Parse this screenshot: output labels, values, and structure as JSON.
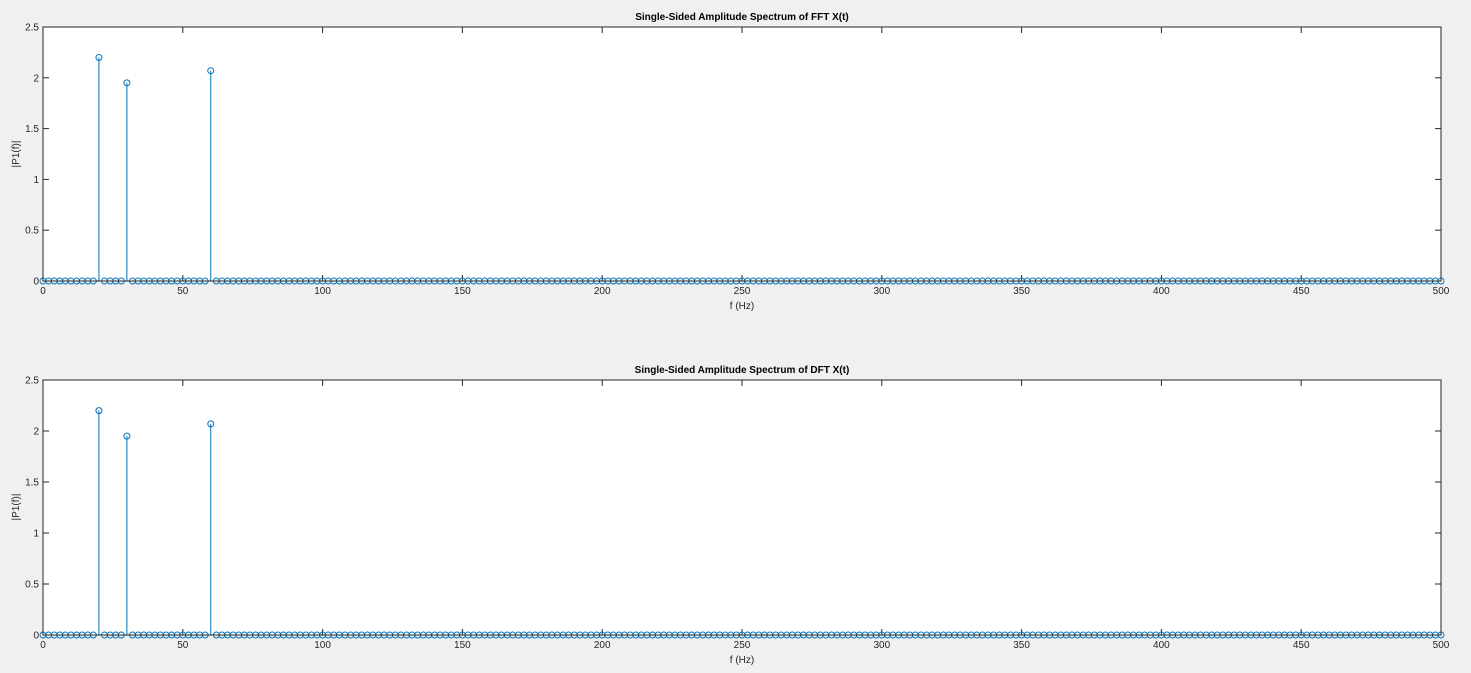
{
  "figure": {
    "background": "#f0f0f0",
    "axes_background": "#ffffff",
    "stem_color": "#0072bd"
  },
  "chart_data": [
    {
      "type": "stem",
      "title": "Single-Sided Amplitude Spectrum of FFT X(t)",
      "xlabel": "f (Hz)",
      "ylabel": "|P1(f)|",
      "xlim": [
        0,
        500
      ],
      "ylim": [
        0,
        2.5
      ],
      "xticks": [
        0,
        50,
        100,
        150,
        200,
        250,
        300,
        350,
        400,
        450,
        500
      ],
      "yticks": [
        0,
        0.5,
        1,
        1.5,
        2,
        2.5
      ],
      "ytick_labels": [
        "0",
        "0.5",
        "1",
        "1.5",
        "2",
        "2.5"
      ],
      "grid": false,
      "baseline_samples": {
        "x_start": 0,
        "x_end": 500,
        "x_step": 2,
        "y": 0
      },
      "peaks": [
        {
          "x": 20,
          "y": 2.2
        },
        {
          "x": 30,
          "y": 1.95
        },
        {
          "x": 60,
          "y": 2.07
        }
      ]
    },
    {
      "type": "stem",
      "title": "Single-Sided Amplitude Spectrum of DFT X(t)",
      "xlabel": "f (Hz)",
      "ylabel": "|P1(f)|",
      "xlim": [
        0,
        500
      ],
      "ylim": [
        0,
        2.5
      ],
      "xticks": [
        0,
        50,
        100,
        150,
        200,
        250,
        300,
        350,
        400,
        450,
        500
      ],
      "yticks": [
        0,
        0.5,
        1,
        1.5,
        2,
        2.5
      ],
      "ytick_labels": [
        "0",
        "0.5",
        "1",
        "1.5",
        "2",
        "2.5"
      ],
      "grid": false,
      "baseline_samples": {
        "x_start": 0,
        "x_end": 500,
        "x_step": 2,
        "y": 0
      },
      "peaks": [
        {
          "x": 20,
          "y": 2.2
        },
        {
          "x": 30,
          "y": 1.95
        },
        {
          "x": 60,
          "y": 2.07
        }
      ]
    }
  ]
}
